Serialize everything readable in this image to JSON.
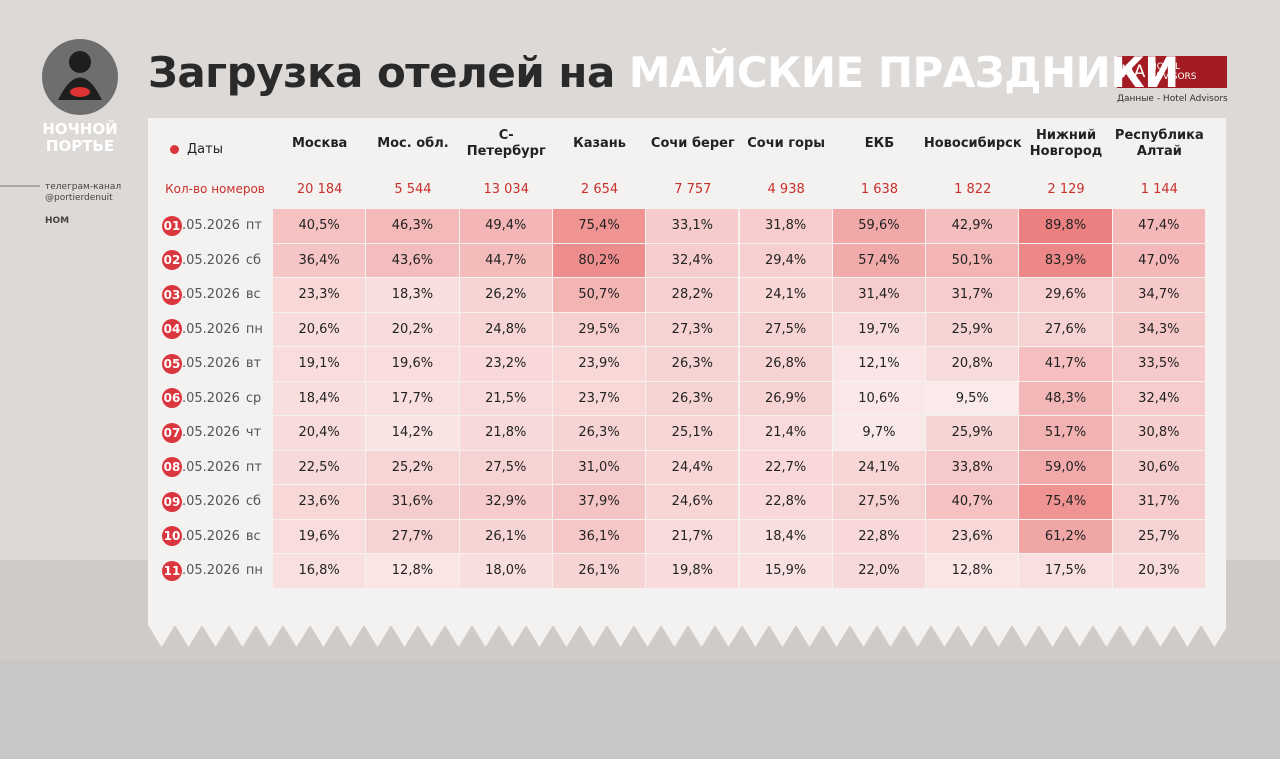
{
  "header": {
    "title": "Загрузка отелей на",
    "title_highlight": "МАЙСКИЕ ПРАЗДНИКИ"
  },
  "logo": {
    "line1": "НОЧНОЙ",
    "line2": "ПОРТЬЕ"
  },
  "side": {
    "channel": "телеграм-канал",
    "handle": "@portierdenuit",
    "brand": "НОМ"
  },
  "partner": {
    "mark": "HA",
    "name": "HOTEL ADVISORS",
    "source": "Данные - Hotel Advisors"
  },
  "table": {
    "date_header": "Даты",
    "columns": [
      "Москва",
      "Мос. обл.",
      "С-Петербург",
      "Казань",
      "Сочи берег",
      "Сочи горы",
      "ЕКБ",
      "Новосибирск",
      "Нижний Новгород",
      "Республика Алтай"
    ],
    "rooms_label": "Кол-во номеров",
    "rooms": [
      "20 184",
      "5 544",
      "13 034",
      "2 654",
      "7 757",
      "4 938",
      "1 638",
      "1 822",
      "2 129",
      "1 144"
    ],
    "rows": [
      {
        "day": "01",
        "date": ".05.2026",
        "weekday": "пт",
        "values": [
          "40,5%",
          "46,3%",
          "49,4%",
          "75,4%",
          "33,1%",
          "31,8%",
          "59,6%",
          "42,9%",
          "89,8%",
          "47,4%"
        ]
      },
      {
        "day": "02",
        "date": ".05.2026",
        "weekday": "сб",
        "values": [
          "36,4%",
          "43,6%",
          "44,7%",
          "80,2%",
          "32,4%",
          "29,4%",
          "57,4%",
          "50,1%",
          "83,9%",
          "47,0%"
        ]
      },
      {
        "day": "03",
        "date": ".05.2026",
        "weekday": "вс",
        "values": [
          "23,3%",
          "18,3%",
          "26,2%",
          "50,7%",
          "28,2%",
          "24,1%",
          "31,4%",
          "31,7%",
          "29,6%",
          "34,7%"
        ]
      },
      {
        "day": "04",
        "date": ".05.2026",
        "weekday": "пн",
        "values": [
          "20,6%",
          "20,2%",
          "24,8%",
          "29,5%",
          "27,3%",
          "27,5%",
          "19,7%",
          "25,9%",
          "27,6%",
          "34,3%"
        ]
      },
      {
        "day": "05",
        "date": ".05.2026",
        "weekday": "вт",
        "values": [
          "19,1%",
          "19,6%",
          "23,2%",
          "23,9%",
          "26,3%",
          "26,8%",
          "12,1%",
          "20,8%",
          "41,7%",
          "33,5%"
        ]
      },
      {
        "day": "06",
        "date": ".05.2026",
        "weekday": "ср",
        "values": [
          "18,4%",
          "17,7%",
          "21,5%",
          "23,7%",
          "26,3%",
          "26,9%",
          "10,6%",
          "9,5%",
          "48,3%",
          "32,4%"
        ]
      },
      {
        "day": "07",
        "date": ".05.2026",
        "weekday": "чт",
        "values": [
          "20,4%",
          "14,2%",
          "21,8%",
          "26,3%",
          "25,1%",
          "21,4%",
          "9,7%",
          "25,9%",
          "51,7%",
          "30,8%"
        ]
      },
      {
        "day": "08",
        "date": ".05.2026",
        "weekday": "пт",
        "values": [
          "22,5%",
          "25,2%",
          "27,5%",
          "31,0%",
          "24,4%",
          "22,7%",
          "24,1%",
          "33,8%",
          "59,0%",
          "30,6%"
        ]
      },
      {
        "day": "09",
        "date": ".05.2026",
        "weekday": "сб",
        "values": [
          "23,6%",
          "31,6%",
          "32,9%",
          "37,9%",
          "24,6%",
          "22,8%",
          "27,5%",
          "40,7%",
          "75,4%",
          "31,7%"
        ]
      },
      {
        "day": "10",
        "date": ".05.2026",
        "weekday": "вс",
        "values": [
          "19,6%",
          "27,7%",
          "26,1%",
          "36,1%",
          "21,7%",
          "18,4%",
          "22,8%",
          "23,6%",
          "61,2%",
          "25,7%"
        ]
      },
      {
        "day": "11",
        "date": ".05.2026",
        "weekday": "пн",
        "values": [
          "16,8%",
          "12,8%",
          "18,0%",
          "26,1%",
          "19,8%",
          "15,9%",
          "22,0%",
          "12,8%",
          "17,5%",
          "20,3%"
        ]
      }
    ]
  }
}
